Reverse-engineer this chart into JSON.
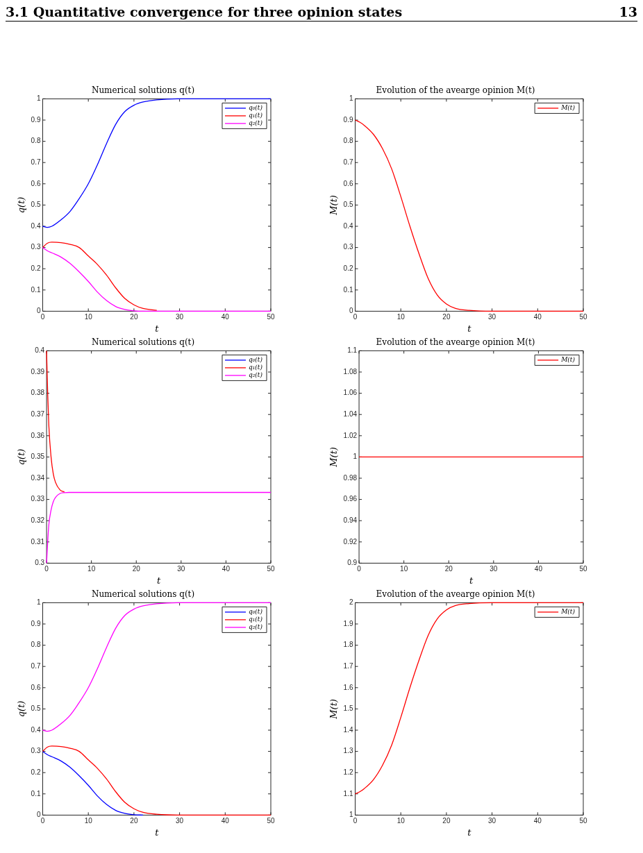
{
  "chart_data": [
    {
      "type": "line",
      "title": "Numerical solutions q(t)",
      "xlabel": "t",
      "ylabel": "q(t)",
      "annotations": [
        "3.1 Quantitative convergence for three opinion states",
        "13"
      ],
      "x": [
        0,
        1,
        2,
        4,
        6,
        8,
        10,
        12,
        14,
        16,
        18,
        20,
        22,
        25,
        30,
        50
      ],
      "xlim": [
        0,
        50
      ],
      "xticks": [
        0,
        10,
        20,
        30,
        40,
        50
      ],
      "ylim": [
        0,
        1
      ],
      "yticks": [
        0,
        0.1,
        0.2,
        0.3,
        0.4,
        0.5,
        0.6,
        0.7,
        0.8,
        0.9,
        1
      ],
      "legend": "top right",
      "marker": "none",
      "line_style": "solid",
      "series": [
        {
          "name": "q₀(t)",
          "color": "#0000ff",
          "values": [
            0.4,
            0.395,
            0.4,
            0.43,
            0.47,
            0.53,
            0.6,
            0.69,
            0.79,
            0.88,
            0.94,
            0.97,
            0.985,
            0.995,
            1,
            1
          ]
        },
        {
          "name": "q₁(t)",
          "color": "#ff0000",
          "values": [
            0.3,
            0.32,
            0.325,
            0.323,
            0.315,
            0.3,
            0.26,
            0.22,
            0.17,
            0.11,
            0.06,
            0.03,
            0.013,
            0.004,
            null,
            null
          ]
        },
        {
          "name": "q₂(t)",
          "color": "#ff00ff",
          "values": [
            0.3,
            0.285,
            0.275,
            0.255,
            0.225,
            0.185,
            0.14,
            0.09,
            0.05,
            0.022,
            0.008,
            0.002,
            0,
            0,
            0,
            0
          ]
        }
      ]
    },
    {
      "type": "line",
      "title": "Evolution of the avearge opinion M(t)",
      "xlabel": "t",
      "ylabel": "M(t)",
      "x": [
        0,
        1,
        2,
        4,
        6,
        8,
        10,
        12,
        14,
        16,
        18,
        20,
        22,
        25,
        30,
        50
      ],
      "xlim": [
        0,
        50
      ],
      "xticks": [
        0,
        10,
        20,
        30,
        40,
        50
      ],
      "ylim": [
        0,
        1
      ],
      "yticks": [
        0,
        0.1,
        0.2,
        0.3,
        0.4,
        0.5,
        0.6,
        0.7,
        0.8,
        0.9,
        1
      ],
      "legend": "top right",
      "marker": "none",
      "line_style": "solid",
      "series": [
        {
          "name": "M(t)",
          "color": "#ff0000",
          "values": [
            0.9,
            0.89,
            0.875,
            0.833,
            0.765,
            0.67,
            0.54,
            0.4,
            0.27,
            0.154,
            0.076,
            0.034,
            0.013,
            0.004,
            0,
            0
          ]
        }
      ]
    },
    {
      "type": "line",
      "title": "Numerical solutions q(t)",
      "xlabel": "t",
      "ylabel": "q(t)",
      "x": [
        0,
        0.25,
        0.5,
        1,
        1.5,
        2,
        3,
        4,
        5,
        50
      ],
      "xlim": [
        0,
        50
      ],
      "xticks": [
        0,
        10,
        20,
        30,
        40,
        50
      ],
      "ylim": [
        0.3,
        0.4
      ],
      "yticks": [
        0.3,
        0.31,
        0.32,
        0.33,
        0.34,
        0.35,
        0.36,
        0.37,
        0.38,
        0.39,
        0.4
      ],
      "legend": "top right",
      "marker": "none",
      "line_style": "solid",
      "series": [
        {
          "name": "q₀(t)",
          "color": "#0000ff",
          "values": [
            null,
            null,
            null,
            null,
            null,
            null,
            null,
            null,
            null,
            null
          ]
        },
        {
          "name": "q₁(t)",
          "color": "#ff0000",
          "values": [
            0.4,
            0.38,
            0.365,
            0.35,
            0.342,
            0.338,
            0.3345,
            0.3335,
            null,
            null
          ]
        },
        {
          "name": "q₂(t)",
          "color": "#ff00ff",
          "values": [
            0.3,
            0.31,
            0.318,
            0.325,
            0.329,
            0.331,
            0.3328,
            0.3332,
            0.3333,
            0.3333
          ]
        }
      ]
    },
    {
      "type": "line",
      "title": "Evolution of the avearge opinion M(t)",
      "xlabel": "t",
      "ylabel": "M(t)",
      "x": [
        0,
        50
      ],
      "xlim": [
        0,
        50
      ],
      "xticks": [
        0,
        10,
        20,
        30,
        40,
        50
      ],
      "ylim": [
        0.9,
        1.1
      ],
      "yticks": [
        0.9,
        0.92,
        0.94,
        0.96,
        0.98,
        1,
        1.02,
        1.04,
        1.06,
        1.08,
        1.1
      ],
      "legend": "top right",
      "marker": "none",
      "line_style": "solid",
      "series": [
        {
          "name": "M(t)",
          "color": "#ff0000",
          "values": [
            1,
            1
          ]
        }
      ]
    },
    {
      "type": "line",
      "title": "Numerical solutions q(t)",
      "xlabel": "t",
      "ylabel": "q(t)",
      "x": [
        0,
        1,
        2,
        4,
        6,
        8,
        10,
        12,
        14,
        16,
        18,
        20,
        22,
        25,
        30,
        50
      ],
      "xlim": [
        0,
        50
      ],
      "xticks": [
        0,
        10,
        20,
        30,
        40,
        50
      ],
      "ylim": [
        0,
        1
      ],
      "yticks": [
        0,
        0.1,
        0.2,
        0.3,
        0.4,
        0.5,
        0.6,
        0.7,
        0.8,
        0.9,
        1
      ],
      "legend": "top right",
      "marker": "none",
      "line_style": "solid",
      "series": [
        {
          "name": "q₀(t)",
          "color": "#0000ff",
          "values": [
            0.3,
            0.285,
            0.275,
            0.255,
            0.225,
            0.185,
            0.14,
            0.09,
            0.05,
            0.022,
            0.008,
            0.002,
            0,
            null,
            null,
            null
          ]
        },
        {
          "name": "q₁(t)",
          "color": "#ff0000",
          "values": [
            0.3,
            0.32,
            0.325,
            0.323,
            0.315,
            0.3,
            0.26,
            0.22,
            0.17,
            0.11,
            0.06,
            0.03,
            0.013,
            0.004,
            0,
            0
          ]
        },
        {
          "name": "q₂(t)",
          "color": "#ff00ff",
          "values": [
            0.4,
            0.395,
            0.4,
            0.43,
            0.47,
            0.53,
            0.6,
            0.69,
            0.79,
            0.88,
            0.94,
            0.97,
            0.985,
            0.995,
            1,
            1
          ]
        }
      ]
    },
    {
      "type": "line",
      "title": "Evolution of the avearge opinion M(t)",
      "xlabel": "t",
      "ylabel": "M(t)",
      "x": [
        0,
        1,
        2,
        4,
        6,
        8,
        10,
        12,
        14,
        16,
        18,
        20,
        22,
        25,
        30,
        50
      ],
      "xlim": [
        0,
        50
      ],
      "xticks": [
        0,
        10,
        20,
        30,
        40,
        50
      ],
      "ylim": [
        1,
        2
      ],
      "yticks": [
        1,
        1.1,
        1.2,
        1.3,
        1.4,
        1.5,
        1.6,
        1.7,
        1.8,
        1.9,
        2
      ],
      "legend": "top right",
      "marker": "none",
      "line_style": "solid",
      "series": [
        {
          "name": "M(t)",
          "color": "#ff0000",
          "values": [
            1.1,
            1.11,
            1.125,
            1.167,
            1.235,
            1.33,
            1.46,
            1.6,
            1.73,
            1.846,
            1.924,
            1.966,
            1.987,
            1.996,
            2,
            2
          ]
        }
      ]
    }
  ]
}
